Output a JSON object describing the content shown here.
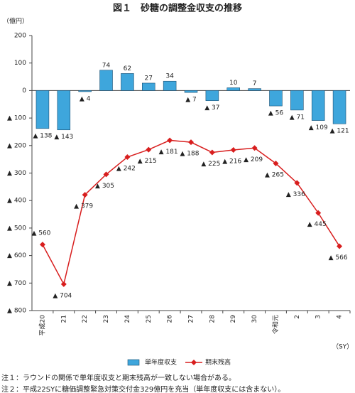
{
  "chart_data": {
    "type": "combo",
    "title": "図１　砂糖の調整金収支の推移",
    "y_label": "（億円）",
    "x_unit": "（SY）",
    "categories": [
      "平成20",
      "21",
      "22",
      "23",
      "24",
      "25",
      "26",
      "27",
      "28",
      "29",
      "30",
      "令和元",
      "2",
      "3",
      "4"
    ],
    "series": [
      {
        "name": "単年度収支",
        "type": "bar",
        "color": "#3ea6dc",
        "values": [
          -138,
          -143,
          -4,
          74,
          62,
          27,
          34,
          -7,
          -37,
          10,
          7,
          -56,
          -71,
          -109,
          -121
        ],
        "value_labels": [
          "▲ 138",
          "▲ 143",
          "▲ 4",
          "74",
          "62",
          "27",
          "34",
          "▲ 7",
          "▲ 37",
          "10",
          "7",
          "▲ 56",
          "▲ 71",
          "▲ 109",
          "▲ 121"
        ]
      },
      {
        "name": "期末残高",
        "type": "line",
        "color": "#d81e1e",
        "values": [
          -560,
          -704,
          -379,
          -305,
          -242,
          -215,
          -181,
          -188,
          -225,
          -216,
          -209,
          -265,
          -336,
          -445,
          -566
        ],
        "value_labels": [
          "▲ 560",
          "▲ 704",
          "▲ 379",
          "▲ 305",
          "▲ 242",
          "▲ 215",
          "▲ 181",
          "▲ 188",
          "▲ 225",
          "▲ 216",
          "▲ 209",
          "▲ 265",
          "▲ 336",
          "▲ 445",
          "▲ 566"
        ]
      }
    ],
    "ylim": [
      -800,
      200
    ],
    "yticks": [
      200,
      100,
      0,
      {
        "value": -100,
        "label": "▲ 100"
      },
      {
        "value": -200,
        "label": "▲ 200"
      },
      {
        "value": -300,
        "label": "▲ 300"
      },
      {
        "value": -400,
        "label": "▲ 400"
      },
      {
        "value": -500,
        "label": "▲ 500"
      },
      {
        "value": -600,
        "label": "▲ 600"
      },
      {
        "value": -700,
        "label": "▲ 700"
      },
      {
        "value": -800,
        "label": "▲ 800"
      }
    ],
    "grid": false,
    "legend": "bottom",
    "notes": [
      "注１：ラウンドの関係で単年度収支と期末残高が一致しない場合がある。",
      "注２：平成22SYに糖価調整緊急対策交付金329億円を充当（単年度収支には含まない）。"
    ]
  }
}
